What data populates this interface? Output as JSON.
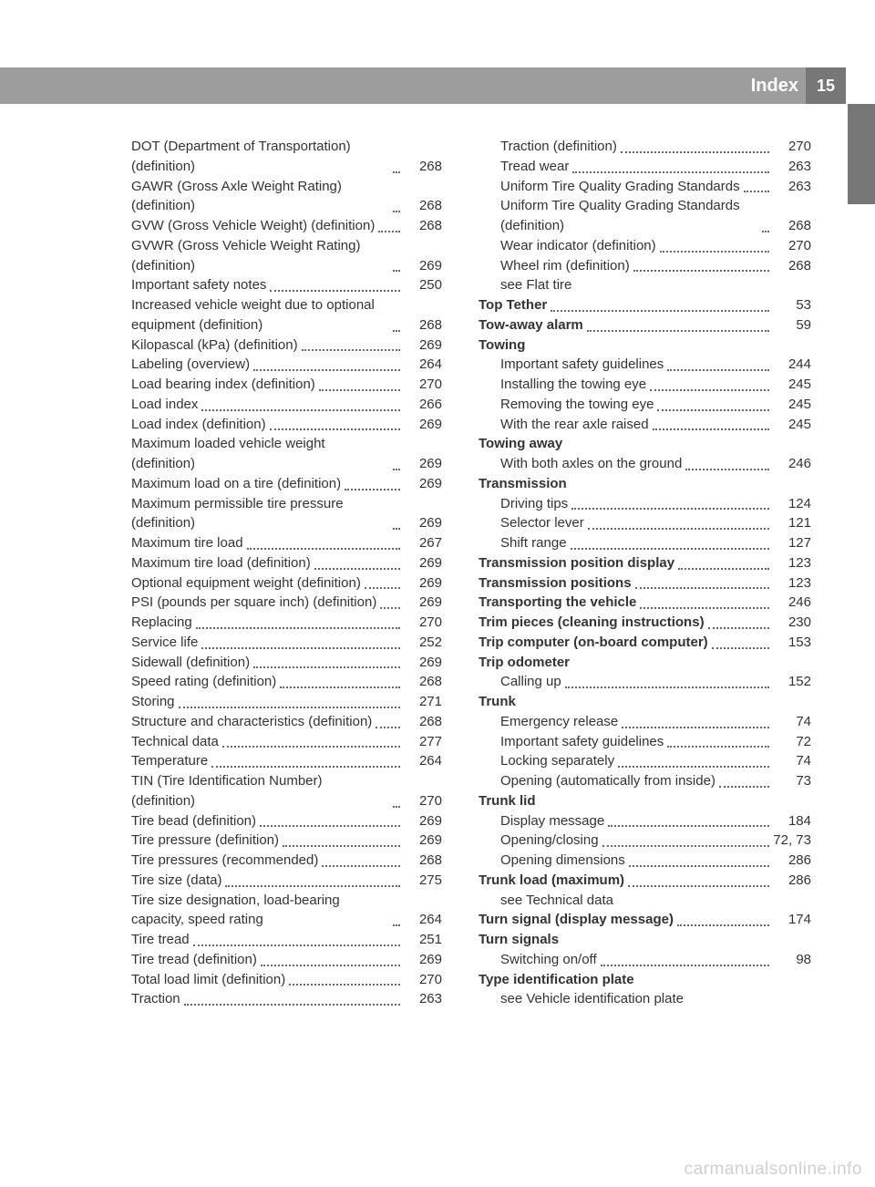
{
  "header": {
    "title": "Index",
    "page": "15"
  },
  "watermark": "carmanualsonline.info",
  "colors": {
    "bar": "#9d9d9d",
    "tab": "#777777",
    "text": "#333333",
    "dots": "#666666",
    "bg": "#ffffff",
    "wm": "#cfcfcf"
  },
  "font": {
    "body_size": 15,
    "header_size": 20
  },
  "left": [
    {
      "label": "DOT (Department of Transportation) (definition)",
      "page": "268",
      "indent": true
    },
    {
      "label": "GAWR (Gross Axle Weight Rating) (definition)",
      "page": "268",
      "indent": true
    },
    {
      "label": "GVW (Gross Vehicle Weight) (definition)",
      "page": "268",
      "indent": true
    },
    {
      "label": "GVWR (Gross Vehicle Weight Rating) (definition)",
      "page": "269",
      "indent": true
    },
    {
      "label": "Important safety notes",
      "page": "250",
      "indent": true
    },
    {
      "label": "Increased vehicle weight due to optional equipment (definition)",
      "page": "268",
      "indent": true
    },
    {
      "label": "Kilopascal (kPa) (definition)",
      "page": "269",
      "indent": true
    },
    {
      "label": "Labeling (overview)",
      "page": "264",
      "indent": true
    },
    {
      "label": "Load bearing index (definition)",
      "page": "270",
      "indent": true
    },
    {
      "label": "Load index",
      "page": "266",
      "indent": true
    },
    {
      "label": "Load index (definition)",
      "page": "269",
      "indent": true
    },
    {
      "label": "Maximum loaded vehicle weight (definition)",
      "page": "269",
      "indent": true
    },
    {
      "label": "Maximum load on a tire (definition)",
      "page": "269",
      "indent": true
    },
    {
      "label": "Maximum permissible tire pressure (definition)",
      "page": "269",
      "indent": true
    },
    {
      "label": "Maximum tire load",
      "page": "267",
      "indent": true
    },
    {
      "label": "Maximum tire load (definition)",
      "page": "269",
      "indent": true
    },
    {
      "label": "Optional equipment weight (definition)",
      "page": "269",
      "indent": true
    },
    {
      "label": "PSI (pounds per square inch) (definition)",
      "page": "269",
      "indent": true
    },
    {
      "label": "Replacing",
      "page": "270",
      "indent": true
    },
    {
      "label": "Service life",
      "page": "252",
      "indent": true
    },
    {
      "label": "Sidewall (definition)",
      "page": "269",
      "indent": true
    },
    {
      "label": "Speed rating (definition)",
      "page": "268",
      "indent": true
    },
    {
      "label": "Storing",
      "page": "271",
      "indent": true
    },
    {
      "label": "Structure and characteristics (definition)",
      "page": "268",
      "indent": true
    },
    {
      "label": "Technical data",
      "page": "277",
      "indent": true
    },
    {
      "label": "Temperature",
      "page": "264",
      "indent": true
    },
    {
      "label": "TIN (Tire Identification Number) (definition)",
      "page": "270",
      "indent": true
    },
    {
      "label": "Tire bead (definition)",
      "page": "269",
      "indent": true
    },
    {
      "label": "Tire pressure (definition)",
      "page": "269",
      "indent": true
    },
    {
      "label": "Tire pressures (recommended)",
      "page": "268",
      "indent": true
    },
    {
      "label": "Tire size (data)",
      "page": "275",
      "indent": true
    },
    {
      "label": "Tire size designation, load-bearing capacity, speed rating",
      "page": "264",
      "indent": true
    },
    {
      "label": "Tire tread",
      "page": "251",
      "indent": true
    },
    {
      "label": "Tire tread (definition)",
      "page": "269",
      "indent": true
    },
    {
      "label": "Total load limit (definition)",
      "page": "270",
      "indent": true
    },
    {
      "label": "Traction",
      "page": "263",
      "indent": true
    }
  ],
  "right": [
    {
      "label": "Traction (definition)",
      "page": "270",
      "indent": true
    },
    {
      "label": "Tread wear",
      "page": "263",
      "indent": true
    },
    {
      "label": "Uniform Tire Quality Grading Standards",
      "page": "263",
      "indent": true
    },
    {
      "label": "Uniform Tire Quality Grading Standards (definition)",
      "page": "268",
      "indent": true
    },
    {
      "label": "Wear indicator (definition)",
      "page": "270",
      "indent": true
    },
    {
      "label": "Wheel rim (definition)",
      "page": "268",
      "indent": true
    },
    {
      "label": "see Flat tire",
      "indent": true
    },
    {
      "label": "Top Tether",
      "page": "53",
      "bold": true
    },
    {
      "label": "Tow-away alarm",
      "page": "59",
      "bold": true
    },
    {
      "label": "Towing",
      "bold": true
    },
    {
      "label": "Important safety guidelines",
      "page": "244",
      "indent": true
    },
    {
      "label": "Installing the towing eye",
      "page": "245",
      "indent": true
    },
    {
      "label": "Removing the towing eye",
      "page": "245",
      "indent": true
    },
    {
      "label": "With the rear axle raised",
      "page": "245",
      "indent": true
    },
    {
      "label": "Towing away",
      "bold": true
    },
    {
      "label": "With both axles on the ground",
      "page": "246",
      "indent": true
    },
    {
      "label": "Transmission",
      "bold": true
    },
    {
      "label": "Driving tips",
      "page": "124",
      "indent": true
    },
    {
      "label": "Selector lever",
      "page": "121",
      "indent": true
    },
    {
      "label": "Shift range",
      "page": "127",
      "indent": true
    },
    {
      "label": "Transmission position display",
      "page": "123",
      "bold": true
    },
    {
      "label": "Transmission positions",
      "page": "123",
      "bold": true
    },
    {
      "label": "Transporting the vehicle",
      "page": "246",
      "bold": true
    },
    {
      "label": "Trim pieces (cleaning instructions)",
      "page": "230",
      "bold": true
    },
    {
      "label": "Trip computer (on-board computer)",
      "page": "153",
      "bold": true
    },
    {
      "label": "Trip odometer",
      "bold": true
    },
    {
      "label": "Calling up",
      "page": "152",
      "indent": true
    },
    {
      "label": "Trunk",
      "bold": true
    },
    {
      "label": "Emergency release",
      "page": "74",
      "indent": true
    },
    {
      "label": "Important safety guidelines",
      "page": "72",
      "indent": true
    },
    {
      "label": "Locking separately",
      "page": "74",
      "indent": true
    },
    {
      "label": "Opening (automatically from inside)",
      "page": "73",
      "indent": true
    },
    {
      "label": "Trunk lid",
      "bold": true
    },
    {
      "label": "Display message",
      "page": "184",
      "indent": true
    },
    {
      "label": "Opening/closing",
      "page": "72, 73",
      "indent": true
    },
    {
      "label": "Opening dimensions",
      "page": "286",
      "indent": true
    },
    {
      "label": "Trunk load (maximum)",
      "page": "286",
      "bold": true
    },
    {
      "label": "see Technical data",
      "indent": true
    },
    {
      "label": "Turn signal (display message)",
      "page": "174",
      "bold": true
    },
    {
      "label": "Turn signals",
      "bold": true
    },
    {
      "label": "Switching on/off",
      "page": "98",
      "indent": true
    },
    {
      "label": "Type identification plate",
      "bold": true
    },
    {
      "label": "see Vehicle identification plate",
      "indent": true
    }
  ]
}
